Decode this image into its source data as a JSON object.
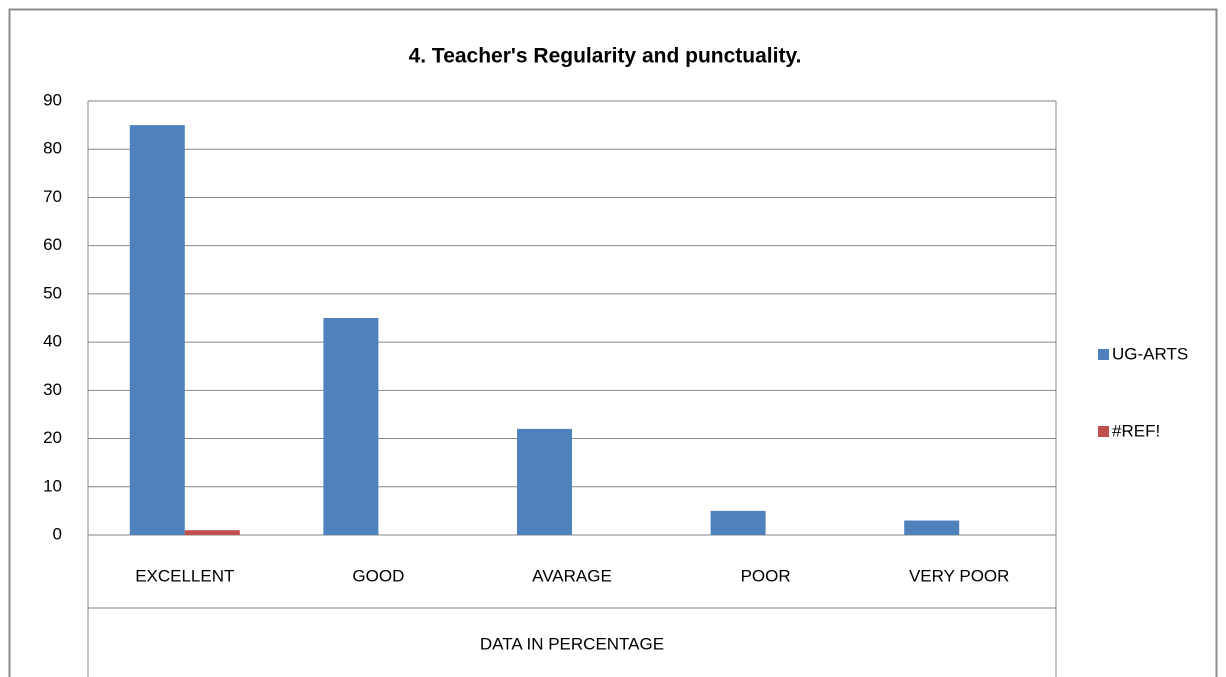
{
  "chart_data": {
    "type": "bar",
    "title": "4.  Teacher's Regularity and punctuality.",
    "xlabel": "DATA IN PERCENTAGE",
    "categories": [
      "EXCELLENT",
      "GOOD",
      "AVARAGE",
      "POOR",
      "VERY POOR"
    ],
    "series": [
      {
        "name": "UG-ARTS",
        "color": "#4f81bd",
        "values": [
          85,
          45,
          22,
          5,
          3
        ]
      },
      {
        "name": "#REF!",
        "color": "#c0504d",
        "values": [
          1,
          0,
          0,
          0,
          0
        ]
      }
    ],
    "ylim": [
      0,
      90
    ],
    "yticks": [
      0,
      10,
      20,
      30,
      40,
      50,
      60,
      70,
      80,
      90
    ],
    "grid": true,
    "legend": "right"
  }
}
